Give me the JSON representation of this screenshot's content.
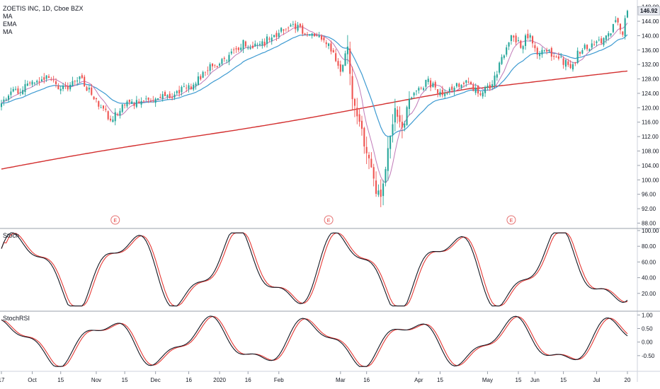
{
  "chart_data": [
    {
      "type": "candlestick",
      "title": "ZOETIS INC, 1D, Cboe BZX",
      "indicators": [
        "MA",
        "EMA",
        "MA"
      ],
      "y_ticks": [
        "148.00",
        "144.00",
        "140.00",
        "136.00",
        "132.00",
        "128.00",
        "124.00",
        "120.00",
        "116.00",
        "112.00",
        "108.00",
        "104.00",
        "100.00",
        "96.00",
        "92.00",
        "88.00"
      ],
      "ylim": [
        87.5,
        149.5
      ],
      "last_price": "146.92",
      "earnings_marker": "E",
      "x_ticks": [
        "17",
        "Oct",
        "15",
        "Nov",
        "15",
        "Dec",
        "16",
        "2020",
        "16",
        "Feb",
        "Mar",
        "16",
        "Apr",
        "15",
        "May",
        "15",
        "Jun",
        "15",
        "Jul",
        "20"
      ],
      "close_waypoints": [
        [
          0,
          120.5
        ],
        [
          5,
          124.5
        ],
        [
          12,
          126
        ],
        [
          20,
          128.3
        ],
        [
          26,
          125
        ],
        [
          33,
          128
        ],
        [
          38,
          124
        ],
        [
          46,
          117
        ],
        [
          52,
          121
        ],
        [
          60,
          122
        ],
        [
          70,
          123
        ],
        [
          80,
          126
        ],
        [
          88,
          131
        ],
        [
          95,
          134
        ],
        [
          102,
          138
        ],
        [
          108,
          137
        ],
        [
          115,
          140
        ],
        [
          122,
          143
        ],
        [
          128,
          141
        ],
        [
          134,
          140
        ],
        [
          138,
          137
        ],
        [
          143,
          131
        ],
        [
          146,
          137
        ],
        [
          148,
          122
        ],
        [
          151,
          117
        ],
        [
          153,
          110
        ],
        [
          156,
          104
        ],
        [
          158,
          97
        ],
        [
          160,
          96
        ],
        [
          163,
          108
        ],
        [
          166,
          119
        ],
        [
          169,
          114
        ],
        [
          172,
          122
        ],
        [
          176,
          126
        ],
        [
          180,
          127
        ],
        [
          186,
          124
        ],
        [
          191,
          126
        ],
        [
          196,
          127
        ],
        [
          201,
          124
        ],
        [
          206,
          126
        ],
        [
          211,
          133
        ],
        [
          215,
          140
        ],
        [
          219,
          137
        ],
        [
          223,
          141
        ],
        [
          226,
          134
        ],
        [
          230,
          136
        ],
        [
          235,
          134
        ],
        [
          240,
          131
        ],
        [
          244,
          136
        ],
        [
          248,
          137
        ],
        [
          252,
          138
        ],
        [
          256,
          140
        ],
        [
          259,
          144
        ],
        [
          262,
          141
        ],
        [
          264,
          146.9
        ]
      ],
      "seed": 7
    },
    {
      "type": "line",
      "title": "Stoch",
      "y_ticks": [
        "100.00",
        "80.00",
        "60.00",
        "40.00",
        "20.00"
      ],
      "ylim": [
        0,
        100
      ],
      "series": [
        {
          "color": "#131722"
        },
        {
          "color": "#e53935"
        }
      ]
    },
    {
      "type": "line",
      "title": "StochRSI",
      "y_ticks": [
        "1.00",
        "0.50",
        "0.00",
        "-0.50"
      ],
      "ylim": [
        -1,
        1
      ],
      "series": [
        {
          "color": "#131722"
        },
        {
          "color": "#e53935"
        }
      ]
    }
  ],
  "colors": {
    "up": "#26a69a",
    "down": "#ef5350",
    "ma_short": "#c07ab8",
    "ema": "#3d9ad1",
    "ma_long": "#d32f2f",
    "price_label": "#e8eaf0"
  }
}
